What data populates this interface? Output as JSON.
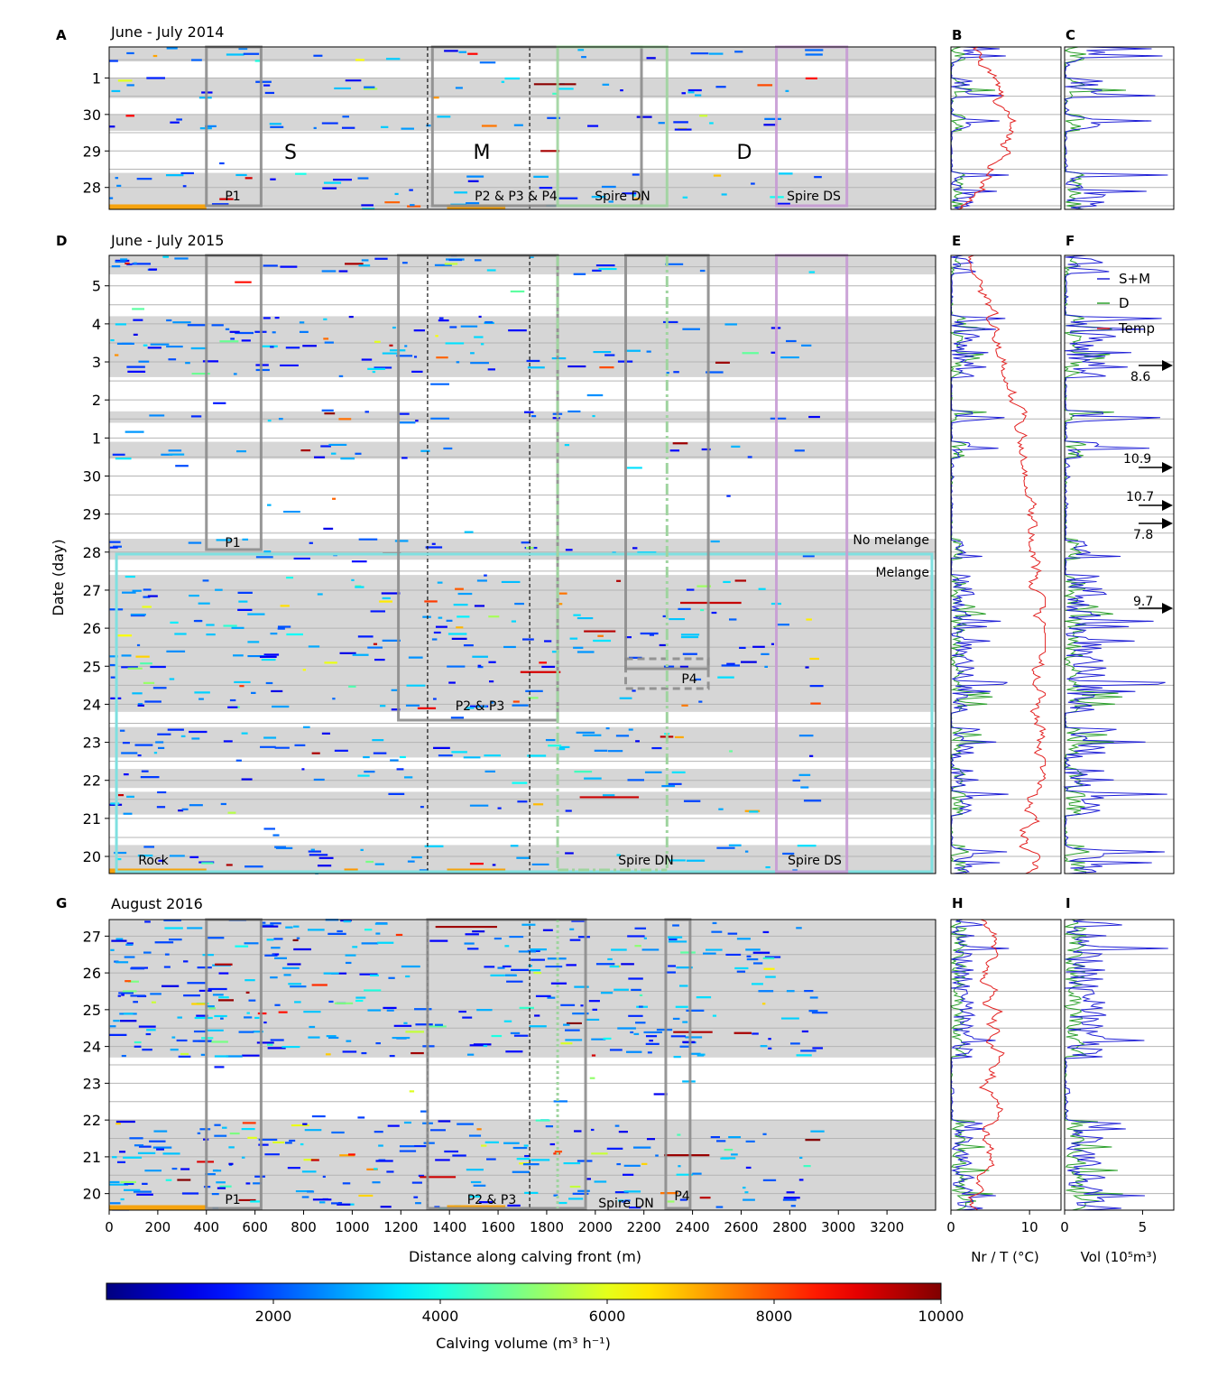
{
  "figure": {
    "x_label": "Distance along calving front (m)",
    "y_label": "Date (day)",
    "x_ticks": [
      0,
      200,
      400,
      600,
      800,
      1000,
      1200,
      1400,
      1600,
      1800,
      2000,
      2200,
      2400,
      2600,
      2800,
      3000,
      3200
    ],
    "colorbar": {
      "label": "Calving volume (m³ h⁻¹)",
      "ticks": [
        2000,
        4000,
        6000,
        8000,
        10000
      ],
      "range": [
        0,
        10000
      ]
    },
    "nr_axis_label": "Nr / T (°C)",
    "vol_axis_label": "Vol (10⁵m³)",
    "nr_ticks": [
      0,
      10
    ],
    "vol_ticks": [
      0,
      5
    ],
    "legend": [
      {
        "name": "S+M",
        "color": "#1f1fd6"
      },
      {
        "name": "D",
        "color": "#2ca02c"
      },
      {
        "name": "Temp",
        "color": "#e32222"
      }
    ]
  },
  "chart_data": [
    {
      "type": "heatmap",
      "panel": "A",
      "title": "June - July 2014",
      "xlim": [
        0,
        3400
      ],
      "ylim": [
        27.4,
        28.0
      ],
      "y_ticks": [
        {
          "v": 28,
          "t": "28"
        },
        {
          "v": 29,
          "t": "29"
        },
        {
          "v": 30,
          "t": "30"
        },
        {
          "v": 31,
          "t": "1"
        }
      ],
      "gray_bands": [
        [
          27.4,
          28.4
        ],
        [
          29.55,
          30.0
        ],
        [
          30.45,
          31.0
        ],
        [
          31.45,
          31.85
        ]
      ],
      "zones": [
        {
          "label": "S",
          "x": 750
        },
        {
          "label": "M",
          "x": 1530
        },
        {
          "label": "D",
          "x": 2600
        }
      ],
      "region_labels": [
        {
          "text": "P1",
          "x": 450
        },
        {
          "text": "P2 & P3 & P4",
          "x": 1830
        },
        {
          "text": "Spire DN",
          "x": 2130
        },
        {
          "text": "Spire DS",
          "x": 2890
        }
      ],
      "side_labels": [
        "B",
        "C"
      ]
    },
    {
      "type": "heatmap",
      "panel": "D",
      "title": "June - July 2015",
      "xlim": [
        0,
        3400
      ],
      "ylim": [
        19.5,
        33.8
      ],
      "y_ticks": [
        {
          "v": 20,
          "t": "20"
        },
        {
          "v": 21,
          "t": "21"
        },
        {
          "v": 22,
          "t": "22"
        },
        {
          "v": 23,
          "t": "23"
        },
        {
          "v": 24,
          "t": "24"
        },
        {
          "v": 25,
          "t": "25"
        },
        {
          "v": 26,
          "t": "26"
        },
        {
          "v": 27,
          "t": "27"
        },
        {
          "v": 28,
          "t": "28"
        },
        {
          "v": 29,
          "t": "29"
        },
        {
          "v": 30,
          "t": "30"
        },
        {
          "v": 31,
          "t": "1"
        },
        {
          "v": 32,
          "t": "2"
        },
        {
          "v": 33,
          "t": "3"
        },
        {
          "v": 34,
          "t": "4"
        },
        {
          "v": 35,
          "t": "5"
        }
      ],
      "gray_bands": [
        [
          19.5,
          20.3
        ],
        [
          21.1,
          21.7
        ],
        [
          21.8,
          22.3
        ],
        [
          22.6,
          23.4
        ],
        [
          23.8,
          27.4
        ],
        [
          27.8,
          28.35
        ],
        [
          30.45,
          30.9
        ],
        [
          31.4,
          31.7
        ],
        [
          32.6,
          34.2
        ],
        [
          35.3,
          35.8
        ]
      ],
      "region_labels": [
        {
          "text": "P1",
          "x": 520
        },
        {
          "text": "P2 & P3",
          "x": 1530
        },
        {
          "text": "P4",
          "x": 2370
        },
        {
          "text": "Spire DN",
          "x": 2220
        },
        {
          "text": "Spire DS",
          "x": 2900
        },
        {
          "text": "Rock",
          "x": 180
        }
      ],
      "annotations": [
        {
          "text": "No melange"
        },
        {
          "text": "Melange"
        }
      ],
      "vol_arrows": [
        "8.6",
        "10.9",
        "10.7",
        "7.8",
        "9.7"
      ],
      "side_labels": [
        "E",
        "F"
      ]
    },
    {
      "type": "heatmap",
      "panel": "G",
      "title": "August 2016",
      "xlim": [
        0,
        3400
      ],
      "ylim": [
        19.55,
        27.45
      ],
      "y_ticks": [
        {
          "v": 20,
          "t": "20"
        },
        {
          "v": 21,
          "t": "21"
        },
        {
          "v": 22,
          "t": "22"
        },
        {
          "v": 23,
          "t": "23"
        },
        {
          "v": 24,
          "t": "24"
        },
        {
          "v": 25,
          "t": "25"
        },
        {
          "v": 26,
          "t": "26"
        },
        {
          "v": 27,
          "t": "27"
        }
      ],
      "gray_bands": [
        [
          19.55,
          22.0
        ],
        [
          23.7,
          27.45
        ]
      ],
      "region_labels": [
        {
          "text": "P1",
          "x": 500
        },
        {
          "text": "P2 & P3",
          "x": 1570
        },
        {
          "text": "Spire DN",
          "x": 2130
        },
        {
          "text": "P4",
          "x": 2330
        }
      ],
      "side_labels": [
        "H",
        "I"
      ]
    }
  ]
}
